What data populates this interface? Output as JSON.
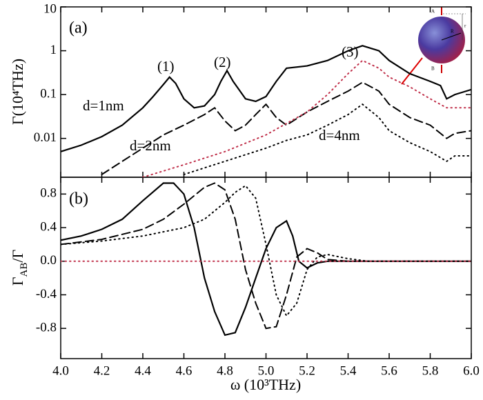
{
  "chart_data": [
    {
      "type": "line",
      "yscale": "log",
      "ylabel": "Γ(10⁴THz)",
      "ylim": [
        0.0013,
        10
      ],
      "yticks": [
        0.01,
        0.1,
        1,
        10
      ],
      "annotations": [
        "(a)",
        "(1)",
        "(2)",
        "(3)",
        "d=1nm",
        "d=2nm",
        "d=4nm"
      ],
      "inset_labels": [
        "A",
        "B",
        "R",
        "r"
      ],
      "series": [
        {
          "name": "d=1nm",
          "color": "#000000",
          "dash": "solid",
          "x": [
            4.0,
            4.1,
            4.2,
            4.3,
            4.4,
            4.45,
            4.5,
            4.53,
            4.56,
            4.6,
            4.65,
            4.7,
            4.75,
            4.78,
            4.81,
            4.84,
            4.9,
            4.95,
            5.0,
            5.05,
            5.1,
            5.2,
            5.3,
            5.4,
            5.47,
            5.55,
            5.6,
            5.7,
            5.8,
            5.85,
            5.88,
            5.92,
            6.0
          ],
          "values": [
            0.005,
            0.007,
            0.011,
            0.02,
            0.05,
            0.09,
            0.17,
            0.25,
            0.18,
            0.08,
            0.05,
            0.055,
            0.1,
            0.2,
            0.35,
            0.2,
            0.08,
            0.07,
            0.09,
            0.2,
            0.4,
            0.45,
            0.6,
            1.0,
            1.3,
            1.0,
            0.6,
            0.3,
            0.2,
            0.16,
            0.08,
            0.1,
            0.13
          ]
        },
        {
          "name": "d=2nm",
          "color": "#000000",
          "dash": "dash",
          "x": [
            4.2,
            4.3,
            4.4,
            4.5,
            4.6,
            4.7,
            4.75,
            4.8,
            4.85,
            4.9,
            4.95,
            5.0,
            5.05,
            5.1,
            5.2,
            5.3,
            5.4,
            5.47,
            5.55,
            5.6,
            5.7,
            5.8,
            5.85,
            5.88,
            5.92,
            6.0
          ],
          "values": [
            0.0015,
            0.003,
            0.006,
            0.012,
            0.02,
            0.035,
            0.05,
            0.025,
            0.015,
            0.02,
            0.035,
            0.06,
            0.03,
            0.02,
            0.04,
            0.07,
            0.12,
            0.19,
            0.12,
            0.06,
            0.03,
            0.02,
            0.013,
            0.01,
            0.013,
            0.015
          ]
        },
        {
          "name": "d=4nm",
          "color": "#000000",
          "dash": "dot",
          "x": [
            4.6,
            4.8,
            5.0,
            5.1,
            5.2,
            5.3,
            5.4,
            5.47,
            5.55,
            5.6,
            5.7,
            5.8,
            5.88,
            5.92,
            6.0
          ],
          "values": [
            0.0015,
            0.003,
            0.006,
            0.009,
            0.012,
            0.02,
            0.035,
            0.06,
            0.03,
            0.015,
            0.008,
            0.005,
            0.003,
            0.004,
            0.004
          ]
        },
        {
          "color": "#c0304a",
          "dash": "dot",
          "x": [
            4.4,
            4.6,
            4.8,
            5.0,
            5.2,
            5.3,
            5.4,
            5.47,
            5.55,
            5.6,
            5.7,
            5.8,
            5.88,
            5.92,
            6.0
          ],
          "values": [
            0.0013,
            0.0025,
            0.005,
            0.012,
            0.04,
            0.1,
            0.3,
            0.6,
            0.4,
            0.25,
            0.15,
            0.08,
            0.05,
            0.05,
            0.05
          ]
        }
      ]
    },
    {
      "type": "line",
      "ylabel_parts": [
        "Γ",
        "AB",
        "/Γ"
      ],
      "xlabel": "ω (10³THz)",
      "xlim": [
        4.0,
        6.0
      ],
      "xticks": [
        {
          "value": 4.0,
          "label": "4.0"
        },
        4.2,
        4.4,
        4.6,
        4.8,
        {
          "value": 5.0,
          "label": "5.0"
        },
        5.2,
        5.4,
        5.6,
        5.8,
        {
          "value": 6.0,
          "label": "6.0"
        }
      ],
      "ylim": [
        -1.16,
        1.0
      ],
      "yticks": [
        -0.8,
        -0.4,
        {
          "value": 0,
          "label": "0.0"
        },
        0.4,
        0.8
      ],
      "annotations": [
        "(b)"
      ],
      "series": [
        {
          "name": "d=1nm",
          "color": "#000000",
          "dash": "solid",
          "x": [
            4.0,
            4.1,
            4.2,
            4.3,
            4.4,
            4.5,
            4.55,
            4.6,
            4.65,
            4.7,
            4.75,
            4.8,
            4.85,
            4.9,
            4.95,
            5.0,
            5.05,
            5.1,
            5.13,
            5.16,
            5.2,
            5.25,
            5.3,
            6.0
          ],
          "values": [
            0.25,
            0.3,
            0.38,
            0.5,
            0.72,
            0.93,
            0.93,
            0.8,
            0.4,
            -0.2,
            -0.6,
            -0.88,
            -0.85,
            -0.55,
            -0.2,
            0.15,
            0.4,
            0.48,
            0.3,
            0,
            -0.08,
            -0.02,
            0,
            0
          ]
        },
        {
          "name": "d=2nm",
          "color": "#000000",
          "dash": "dash",
          "x": [
            4.0,
            4.2,
            4.4,
            4.5,
            4.6,
            4.7,
            4.75,
            4.8,
            4.85,
            4.9,
            4.95,
            5.0,
            5.05,
            5.1,
            5.15,
            5.2,
            5.25,
            5.3,
            5.4,
            6.0
          ],
          "values": [
            0.2,
            0.26,
            0.38,
            0.5,
            0.68,
            0.88,
            0.93,
            0.85,
            0.5,
            -0.1,
            -0.5,
            -0.8,
            -0.78,
            -0.4,
            0.05,
            0.15,
            0.1,
            0.02,
            0,
            0
          ]
        },
        {
          "name": "d=4nm",
          "color": "#000000",
          "dash": "dot",
          "x": [
            4.0,
            4.2,
            4.4,
            4.6,
            4.7,
            4.8,
            4.85,
            4.9,
            4.95,
            5.0,
            5.05,
            5.1,
            5.15,
            5.2,
            5.25,
            5.3,
            5.4,
            5.5,
            6.0
          ],
          "values": [
            0.2,
            0.24,
            0.3,
            0.4,
            0.5,
            0.7,
            0.82,
            0.9,
            0.75,
            0.2,
            -0.4,
            -0.65,
            -0.5,
            -0.1,
            0.05,
            0.08,
            0.03,
            0,
            0
          ]
        },
        {
          "color": "#c0304a",
          "dash": "dot",
          "x": [
            4.0,
            6.0
          ],
          "values": [
            0,
            0
          ]
        }
      ]
    }
  ]
}
